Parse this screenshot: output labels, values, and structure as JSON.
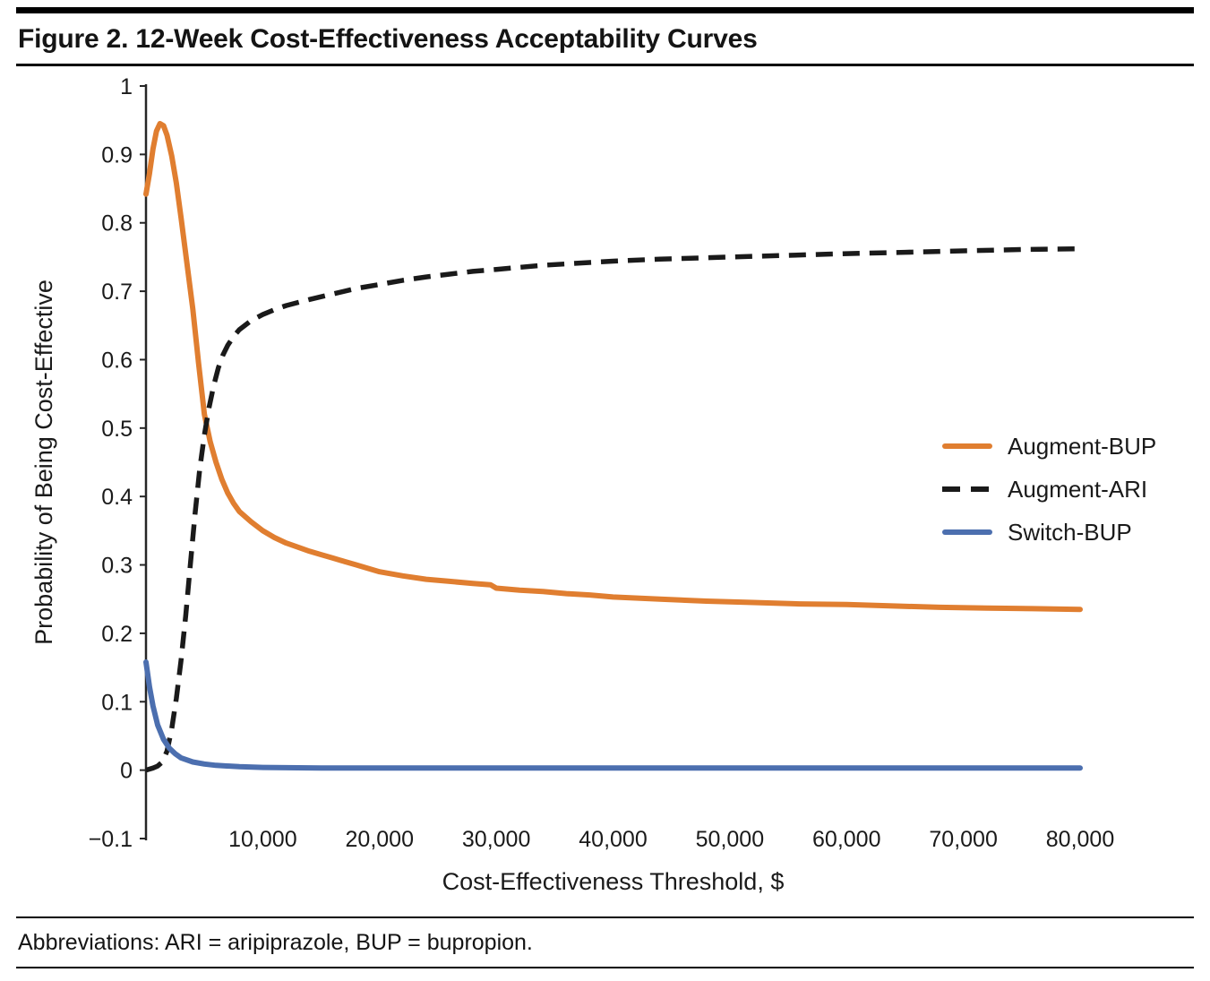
{
  "figure": {
    "title": "Figure 2. 12-Week Cost-Effectiveness Acceptability Curves"
  },
  "footnote": {
    "text": "Abbreviations: ARI = aripiprazole, BUP = bupropion."
  },
  "chart_data": {
    "type": "line",
    "title": "Figure 2. 12-Week Cost-Effectiveness Acceptability Curves",
    "xlabel": "Cost-Effectiveness Threshold, $",
    "ylabel": "Probability of Being Cost-Effective",
    "xlim": [
      0,
      80000
    ],
    "ylim": [
      -0.1,
      1.0
    ],
    "grid": false,
    "legend_position": "right-inside",
    "axis_color": "#262626",
    "x_ticks": {
      "values": [
        10000,
        20000,
        30000,
        40000,
        50000,
        60000,
        70000,
        80000
      ],
      "labels": [
        "10,000",
        "20,000",
        "30,000",
        "40,000",
        "50,000",
        "60,000",
        "70,000",
        "80,000"
      ]
    },
    "y_ticks": {
      "values": [
        1,
        0.9,
        0.8,
        0.7,
        0.6,
        0.5,
        0.4,
        0.3,
        0.2,
        0.1,
        0,
        -0.1
      ],
      "labels": [
        "1",
        "0.9",
        "0.8",
        "0.7",
        "0.6",
        "0.5",
        "0.4",
        "0.3",
        "0.2",
        "0.1",
        "0",
        "−0.1"
      ]
    },
    "series": [
      {
        "name": "Augment-BUP",
        "color": "#E07E30",
        "style": "solid",
        "points": [
          [
            0,
            0.842
          ],
          [
            300,
            0.872
          ],
          [
            600,
            0.908
          ],
          [
            900,
            0.934
          ],
          [
            1200,
            0.945
          ],
          [
            1500,
            0.942
          ],
          [
            1800,
            0.928
          ],
          [
            2200,
            0.898
          ],
          [
            2600,
            0.858
          ],
          [
            3000,
            0.808
          ],
          [
            3500,
            0.742
          ],
          [
            4000,
            0.675
          ],
          [
            4500,
            0.595
          ],
          [
            5000,
            0.52
          ],
          [
            5500,
            0.48
          ],
          [
            6000,
            0.45
          ],
          [
            6500,
            0.425
          ],
          [
            7000,
            0.405
          ],
          [
            7500,
            0.39
          ],
          [
            8000,
            0.378
          ],
          [
            9000,
            0.363
          ],
          [
            10000,
            0.35
          ],
          [
            11000,
            0.34
          ],
          [
            12000,
            0.332
          ],
          [
            13000,
            0.326
          ],
          [
            14000,
            0.32
          ],
          [
            15000,
            0.315
          ],
          [
            16000,
            0.31
          ],
          [
            17000,
            0.305
          ],
          [
            18000,
            0.3
          ],
          [
            19000,
            0.295
          ],
          [
            20000,
            0.29
          ],
          [
            22000,
            0.284
          ],
          [
            24000,
            0.279
          ],
          [
            26000,
            0.276
          ],
          [
            28000,
            0.273
          ],
          [
            29500,
            0.271
          ],
          [
            30000,
            0.266
          ],
          [
            32000,
            0.263
          ],
          [
            34000,
            0.261
          ],
          [
            36000,
            0.258
          ],
          [
            38000,
            0.256
          ],
          [
            40000,
            0.253
          ],
          [
            44000,
            0.25
          ],
          [
            48000,
            0.247
          ],
          [
            52000,
            0.245
          ],
          [
            56000,
            0.243
          ],
          [
            60000,
            0.242
          ],
          [
            64000,
            0.24
          ],
          [
            68000,
            0.238
          ],
          [
            72000,
            0.237
          ],
          [
            76000,
            0.236
          ],
          [
            80000,
            0.235
          ]
        ]
      },
      {
        "name": "Augment-ARI",
        "color": "#1A1A1A",
        "style": "dashed",
        "points": [
          [
            0,
            0.0
          ],
          [
            600,
            0.003
          ],
          [
            1000,
            0.006
          ],
          [
            1400,
            0.012
          ],
          [
            1800,
            0.028
          ],
          [
            2200,
            0.06
          ],
          [
            2600,
            0.105
          ],
          [
            3000,
            0.16
          ],
          [
            3400,
            0.225
          ],
          [
            3800,
            0.3
          ],
          [
            4200,
            0.375
          ],
          [
            4600,
            0.44
          ],
          [
            5000,
            0.49
          ],
          [
            5400,
            0.53
          ],
          [
            5800,
            0.562
          ],
          [
            6200,
            0.588
          ],
          [
            6600,
            0.607
          ],
          [
            7000,
            0.621
          ],
          [
            7500,
            0.634
          ],
          [
            8000,
            0.644
          ],
          [
            9000,
            0.657
          ],
          [
            10000,
            0.666
          ],
          [
            11000,
            0.673
          ],
          [
            12000,
            0.679
          ],
          [
            14000,
            0.688
          ],
          [
            16000,
            0.696
          ],
          [
            18000,
            0.704
          ],
          [
            20000,
            0.71
          ],
          [
            22000,
            0.716
          ],
          [
            24000,
            0.721
          ],
          [
            26000,
            0.725
          ],
          [
            28000,
            0.729
          ],
          [
            30000,
            0.732
          ],
          [
            34000,
            0.738
          ],
          [
            38000,
            0.742
          ],
          [
            40000,
            0.744
          ],
          [
            44000,
            0.747
          ],
          [
            48000,
            0.749
          ],
          [
            52000,
            0.751
          ],
          [
            56000,
            0.753
          ],
          [
            60000,
            0.755
          ],
          [
            65000,
            0.757
          ],
          [
            70000,
            0.759
          ],
          [
            75000,
            0.761
          ],
          [
            80000,
            0.762
          ]
        ]
      },
      {
        "name": "Switch-BUP",
        "color": "#4C6FAF",
        "style": "solid",
        "points": [
          [
            0,
            0.158
          ],
          [
            300,
            0.122
          ],
          [
            600,
            0.094
          ],
          [
            1000,
            0.066
          ],
          [
            1500,
            0.045
          ],
          [
            2000,
            0.032
          ],
          [
            2500,
            0.024
          ],
          [
            3000,
            0.018
          ],
          [
            4000,
            0.012
          ],
          [
            5000,
            0.009
          ],
          [
            6000,
            0.007
          ],
          [
            8000,
            0.005
          ],
          [
            10000,
            0.004
          ],
          [
            15000,
            0.003
          ],
          [
            20000,
            0.003
          ],
          [
            30000,
            0.003
          ],
          [
            40000,
            0.003
          ],
          [
            50000,
            0.003
          ],
          [
            60000,
            0.003
          ],
          [
            70000,
            0.003
          ],
          [
            80000,
            0.003
          ]
        ]
      }
    ]
  }
}
